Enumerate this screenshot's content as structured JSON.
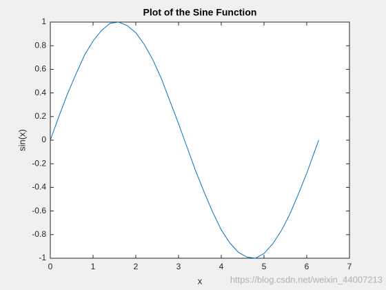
{
  "chart_data": {
    "type": "line",
    "title": "Plot of the Sine Function",
    "x_label": "x",
    "y_label": "sin(x)",
    "watermark": "https://blog.csdn.net/weixin_44007213",
    "x": [
      0,
      0.2,
      0.4,
      0.6,
      0.8,
      1.0,
      1.2,
      1.4,
      1.6,
      1.8,
      2.0,
      2.2,
      2.4,
      2.6,
      2.8,
      3.0,
      3.2,
      3.4,
      3.6,
      3.8,
      4.0,
      4.2,
      4.4,
      4.6,
      4.8,
      5.0,
      5.2,
      5.4,
      5.6,
      5.8,
      6.0,
      6.2,
      6.28
    ],
    "series": [
      {
        "color": "#0072bd",
        "values": [
          0,
          0.2,
          0.39,
          0.56,
          0.72,
          0.84,
          0.93,
          0.99,
          1.0,
          0.97,
          0.91,
          0.81,
          0.68,
          0.52,
          0.33,
          0.14,
          -0.06,
          -0.26,
          -0.44,
          -0.61,
          -0.76,
          -0.87,
          -0.95,
          -0.99,
          -1.0,
          -0.96,
          -0.88,
          -0.77,
          -0.63,
          -0.46,
          -0.28,
          -0.08,
          0.0
        ]
      }
    ],
    "xlim": [
      0,
      7
    ],
    "xticks": [
      0,
      1,
      2,
      3,
      4,
      5,
      6,
      7
    ],
    "ylim": [
      -1,
      1
    ],
    "yticks": [
      -1,
      -0.8,
      -0.6,
      -0.4,
      -0.2,
      0,
      0.2,
      0.4,
      0.6,
      0.8,
      1
    ],
    "grid": false
  }
}
